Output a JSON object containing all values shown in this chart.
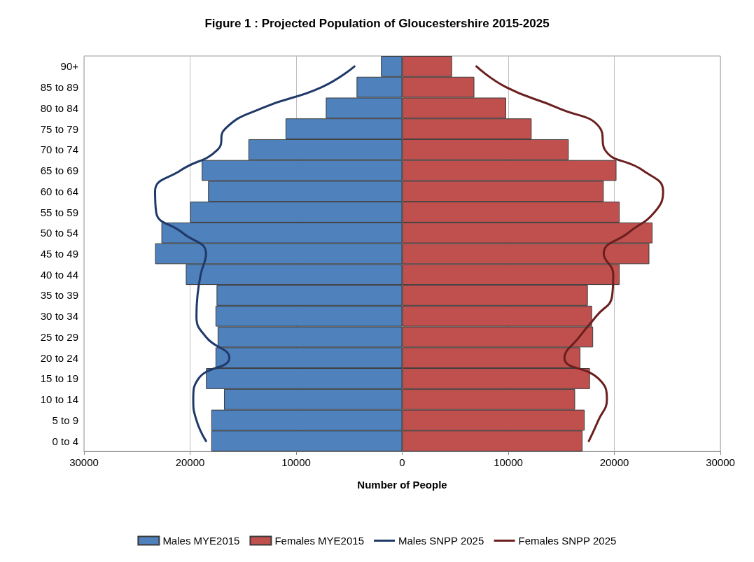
{
  "chart_data": {
    "type": "bar",
    "orientation": "horizontal",
    "title": "Figure 1 : Projected Population of Gloucestershire 2015-2025",
    "xlabel": "Number of People",
    "categories": [
      "90+",
      "85 to 89",
      "80 to 84",
      "75 to 79",
      "70 to 74",
      "65 to 69",
      "60 to 64",
      "55 to 59",
      "50 to 54",
      "45 to 49",
      "40 to 44",
      "35 to 39",
      "30 to 34",
      "25 to 29",
      "20 to 24",
      "15 to 19",
      "10 to 14",
      "5 to 9",
      "0 to 4"
    ],
    "series": [
      {
        "name": "Males MYE2015",
        "color": "#4f81bd",
        "values": [
          -2000,
          -4300,
          -7200,
          -11000,
          -14500,
          -18900,
          -18300,
          -20000,
          -22700,
          -23300,
          -20400,
          -17500,
          -17600,
          -17400,
          -17600,
          -18500,
          -16800,
          -18000,
          -18000
        ]
      },
      {
        "name": "Females MYE2015",
        "color": "#c0504d",
        "values": [
          4700,
          6800,
          9800,
          12200,
          15700,
          20200,
          19000,
          20500,
          23600,
          23300,
          20500,
          17500,
          17900,
          18000,
          16800,
          17700,
          16300,
          17200,
          17000
        ]
      },
      {
        "name": "Males SNPP 2025",
        "type": "line",
        "color": "#1f3a68",
        "values": [
          -4500,
          -7600,
          -13200,
          -16700,
          -17400,
          -20900,
          -23300,
          -23200,
          -20700,
          -18500,
          -19000,
          -19300,
          -19400,
          -18500,
          -16300,
          -19200,
          -19700,
          -19400,
          -18500
        ]
      },
      {
        "name": "Females SNPP 2025",
        "type": "line",
        "color": "#6b1f1f",
        "values": [
          7000,
          9800,
          14700,
          18700,
          19100,
          22700,
          24600,
          23800,
          21300,
          19000,
          19900,
          19800,
          18300,
          16700,
          15300,
          18500,
          19300,
          18500,
          17600
        ]
      }
    ],
    "xlim": [
      -30000,
      30000
    ],
    "xticks": [
      {
        "value": -30000,
        "label": "30000"
      },
      {
        "value": -20000,
        "label": "20000"
      },
      {
        "value": -10000,
        "label": "10000"
      },
      0,
      10000,
      20000,
      30000
    ],
    "stacked": true,
    "grid": "x",
    "legend": "bottom",
    "marker": "none",
    "line_style": "solid"
  }
}
